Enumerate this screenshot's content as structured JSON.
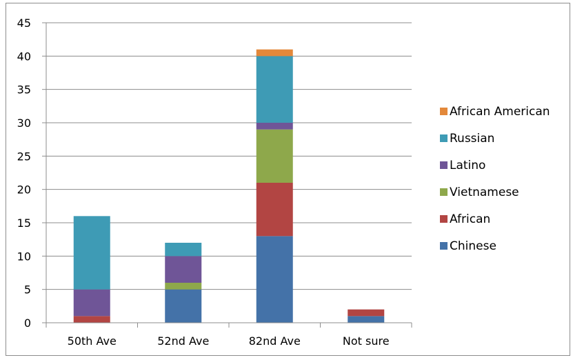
{
  "chart_data": {
    "type": "bar",
    "stacked": true,
    "categories": [
      "50th Ave",
      "52nd Ave",
      "82nd Ave",
      "Not sure"
    ],
    "series": [
      {
        "name": "Chinese",
        "color": "#4472a8",
        "values": [
          0,
          5,
          13,
          1
        ]
      },
      {
        "name": "African",
        "color": "#b24543",
        "values": [
          1,
          0,
          8,
          1
        ]
      },
      {
        "name": "Vietnamese",
        "color": "#8ea84b",
        "values": [
          0,
          1,
          8,
          0
        ]
      },
      {
        "name": "Latino",
        "color": "#6f5597",
        "values": [
          4,
          4,
          1,
          0
        ]
      },
      {
        "name": "Russian",
        "color": "#3e9bb5",
        "values": [
          11,
          2,
          10,
          0
        ]
      },
      {
        "name": "African American",
        "color": "#e3883a",
        "values": [
          0,
          0,
          1,
          0
        ]
      }
    ],
    "ylim": [
      0,
      45
    ],
    "yticks": [
      0,
      5,
      10,
      15,
      20,
      25,
      30,
      35,
      40,
      45
    ],
    "grid": true,
    "legend": "right",
    "legend_order": [
      "African American",
      "Russian",
      "Latino",
      "Vietnamese",
      "African",
      "Chinese"
    ]
  }
}
